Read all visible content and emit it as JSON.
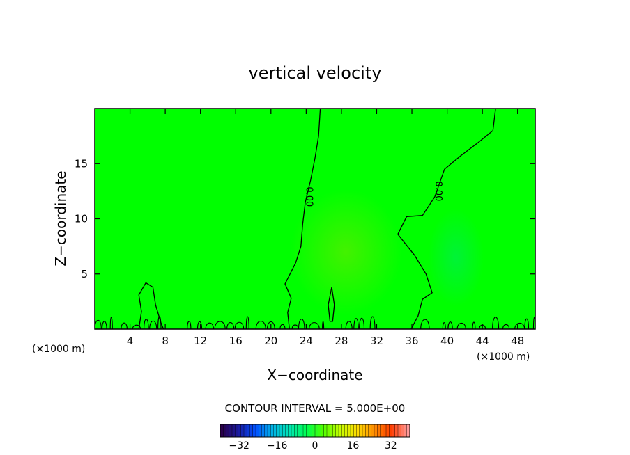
{
  "chart_data": {
    "type": "heatmap",
    "title": "vertical velocity",
    "xlabel": "X−coordinate",
    "ylabel": "Z−coordinate",
    "xlim": [
      0,
      50
    ],
    "ylim": [
      0,
      20
    ],
    "x_unit": "(×1000 m)",
    "y_unit": "(×1000 m)",
    "x_ticks": [
      4,
      8,
      12,
      16,
      20,
      24,
      28,
      32,
      36,
      40,
      44,
      48
    ],
    "x_tick_labels": [
      "4",
      "8",
      "12",
      "16",
      "20",
      "24",
      "28",
      "32",
      "36",
      "40",
      "44",
      "48"
    ],
    "y_ticks": [
      5,
      10,
      15
    ],
    "y_tick_labels": [
      "5",
      "10",
      "15"
    ],
    "background_color": "#00ff00",
    "contour_interval_text": "CONTOUR INTERVAL = 5.000E+00",
    "contour_labels": [
      {
        "text": "0.00",
        "x": 24.0,
        "z": 12.0
      },
      {
        "text": "0.00",
        "x": 38.7,
        "z": 12.5
      }
    ],
    "contour_lines": [
      {
        "name": "zero-left",
        "points": [
          [
            25.6,
            20
          ],
          [
            25.4,
            17.5
          ],
          [
            25.0,
            15.5
          ],
          [
            24.5,
            13.5
          ],
          [
            23.9,
            11.5
          ],
          [
            23.6,
            9.5
          ],
          [
            23.4,
            7.5
          ],
          [
            22.8,
            6.0
          ],
          [
            21.6,
            4.1
          ],
          [
            22.3,
            2.8
          ],
          [
            21.9,
            1.5
          ],
          [
            22.1,
            0
          ]
        ]
      },
      {
        "name": "zero-right",
        "points": [
          [
            45.5,
            20
          ],
          [
            45.2,
            18
          ],
          [
            43.5,
            16.9
          ],
          [
            41.5,
            15.7
          ],
          [
            39.7,
            14.5
          ],
          [
            38.6,
            12.0
          ],
          [
            37.2,
            10.3
          ],
          [
            35.4,
            10.2
          ],
          [
            34.4,
            8.6
          ],
          [
            36.3,
            6.7
          ],
          [
            37.6,
            5.0
          ],
          [
            38.3,
            3.3
          ],
          [
            37.2,
            2.7
          ],
          [
            36.7,
            1.2
          ],
          [
            35.9,
            0
          ]
        ]
      },
      {
        "name": "left-bubble",
        "points": [
          [
            5.0,
            0
          ],
          [
            5.3,
            1.6
          ],
          [
            5.0,
            3.1
          ],
          [
            5.8,
            4.2
          ],
          [
            6.6,
            3.8
          ],
          [
            6.9,
            2.2
          ],
          [
            7.5,
            0.6
          ],
          [
            7.8,
            0
          ]
        ]
      },
      {
        "name": "positive-core",
        "points": [
          [
            26.7,
            0.7
          ],
          [
            26.5,
            2.2
          ],
          [
            26.9,
            3.8
          ],
          [
            27.2,
            2.2
          ],
          [
            27.0,
            0.7
          ],
          [
            26.7,
            0.7
          ]
        ]
      }
    ],
    "colorbar": {
      "min": -40,
      "max": 40,
      "ticks": [
        -32,
        -16,
        0,
        16,
        32
      ],
      "tick_labels": [
        "−32",
        "−16",
        "0",
        "16",
        "32"
      ],
      "colormap": [
        "#2a004a",
        "#1a1a9f",
        "#0050ff",
        "#00b4e6",
        "#00e6b4",
        "#00ff50",
        "#50ff00",
        "#c8ff00",
        "#ffdc00",
        "#ff8c00",
        "#ff3c00",
        "#ff9a9a"
      ]
    }
  }
}
